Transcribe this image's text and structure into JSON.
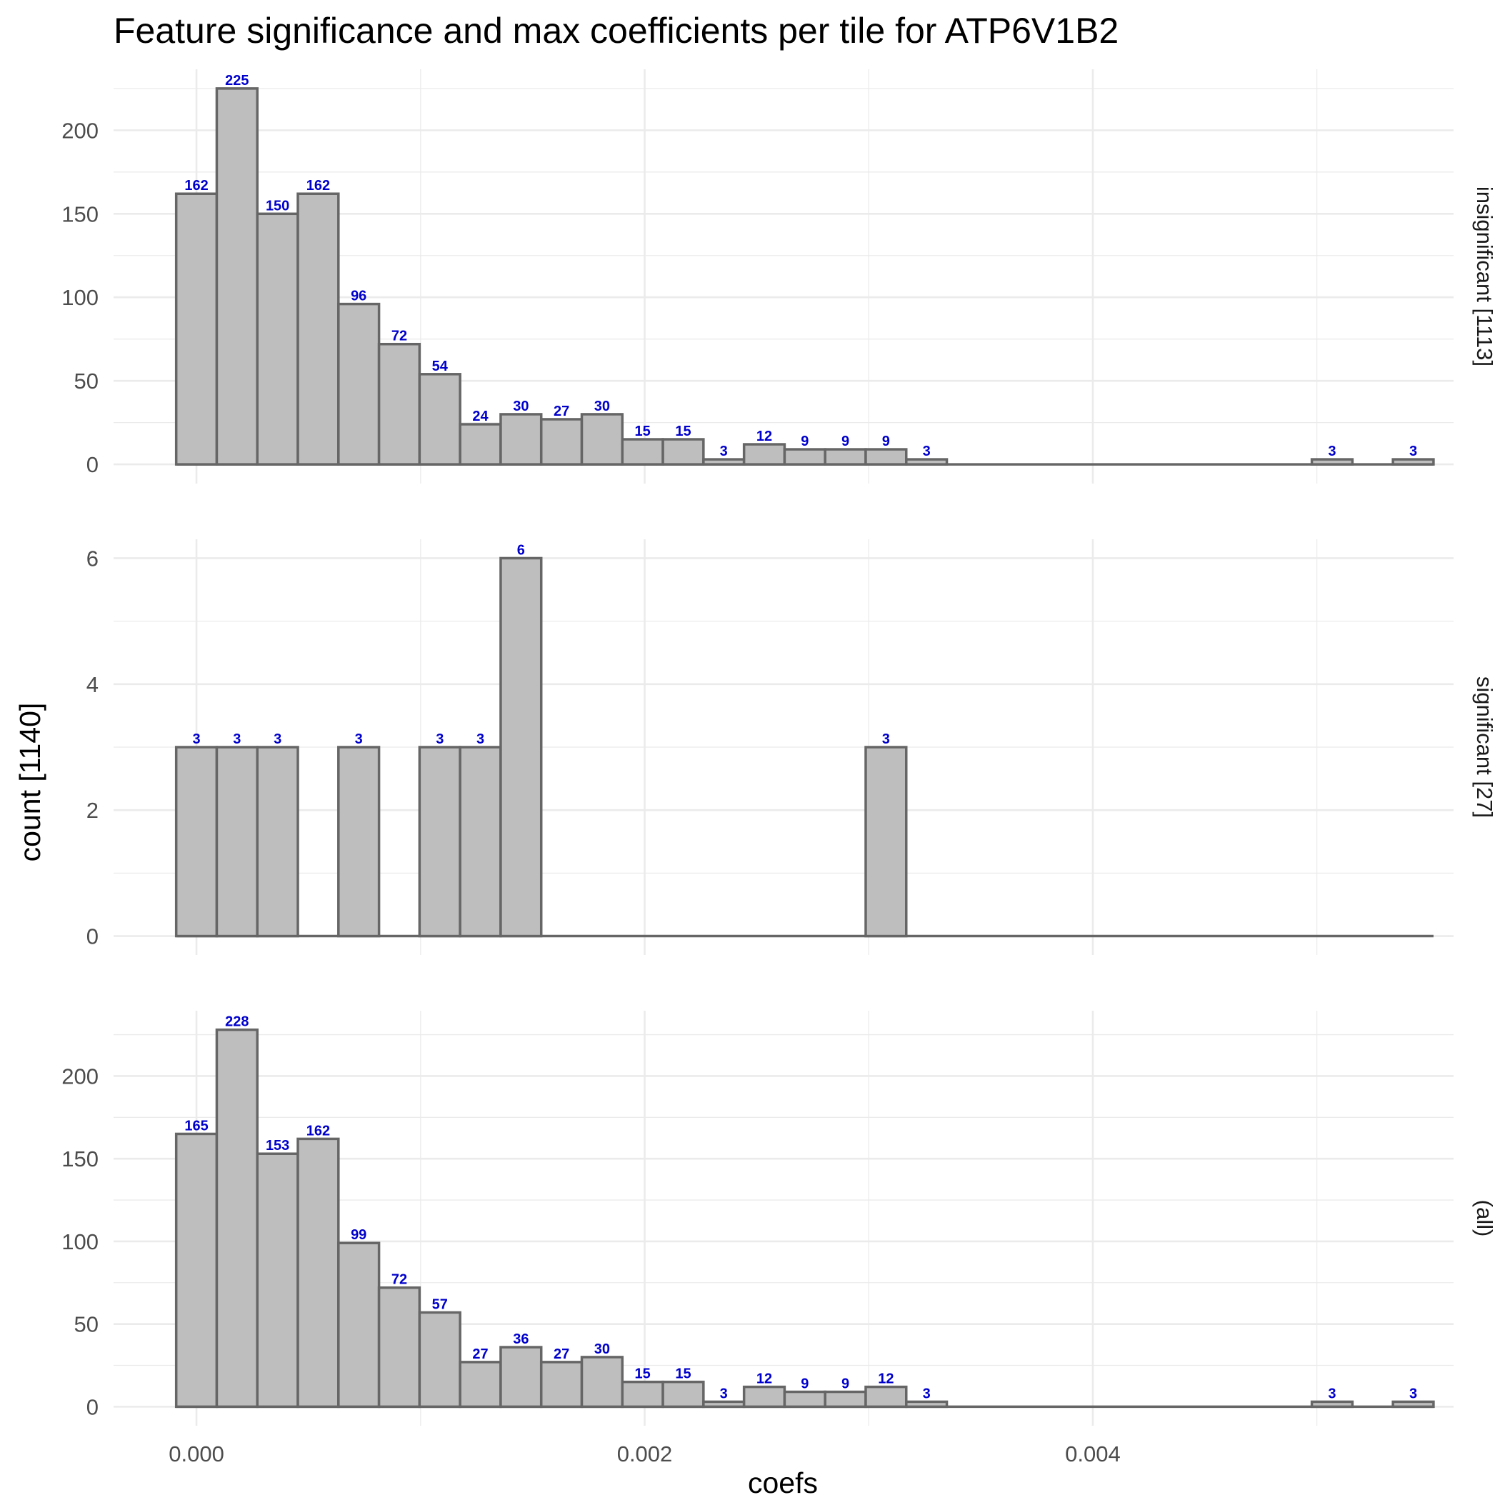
{
  "chart_data": {
    "type": "bar",
    "title": "Feature significance and max coefficients per tile for ATP6V1B2",
    "xlabel": "coefs",
    "ylabel": "count [1140]",
    "xlim": [
      -0.00037,
      0.00561
    ],
    "x_ticks": [
      "0.000",
      "0.002",
      "0.004"
    ],
    "x_tick_values": [
      0.0,
      0.002,
      0.004
    ],
    "bin_width": 0.000181,
    "bin_start": -9.05e-05,
    "bar_color": "#bebebe",
    "bar_edge_color": "#666666",
    "label_color": "#0000cc",
    "grid": true,
    "facets": [
      {
        "label": "insignificant [1113]",
        "ylim": [
          -11.5,
          236.5
        ],
        "y_ticks": [
          "0",
          "50",
          "100",
          "150",
          "200"
        ],
        "y_tick_values": [
          0,
          50,
          100,
          150,
          200
        ],
        "values": [
          162,
          225,
          150,
          162,
          96,
          72,
          54,
          24,
          30,
          27,
          30,
          15,
          15,
          3,
          12,
          9,
          9,
          9,
          3,
          0,
          0,
          0,
          0,
          0,
          0,
          0,
          0,
          0,
          3,
          0,
          3
        ]
      },
      {
        "label": "significant [27]",
        "ylim": [
          -0.3,
          6.3
        ],
        "y_ticks": [
          "0",
          "2",
          "4",
          "6"
        ],
        "y_tick_values": [
          0,
          2,
          4,
          6
        ],
        "values": [
          3,
          3,
          3,
          0,
          3,
          0,
          3,
          3,
          6,
          0,
          0,
          0,
          0,
          0,
          0,
          0,
          0,
          3,
          0,
          0,
          0,
          0,
          0,
          0,
          0,
          0,
          0,
          0,
          0,
          0,
          0
        ]
      },
      {
        "label": "(all)",
        "ylim": [
          -11.5,
          239.5
        ],
        "y_ticks": [
          "0",
          "50",
          "100",
          "150",
          "200"
        ],
        "y_tick_values": [
          0,
          50,
          100,
          150,
          200
        ],
        "values": [
          165,
          228,
          153,
          162,
          99,
          72,
          57,
          27,
          36,
          27,
          30,
          15,
          15,
          3,
          12,
          9,
          9,
          12,
          3,
          0,
          0,
          0,
          0,
          0,
          0,
          0,
          0,
          0,
          3,
          0,
          3
        ]
      }
    ]
  }
}
